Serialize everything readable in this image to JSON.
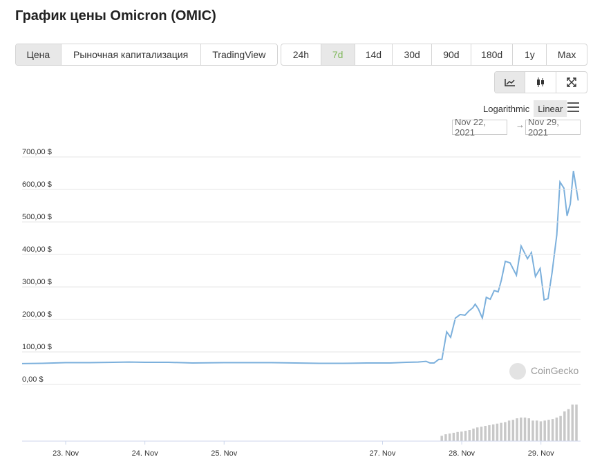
{
  "title": "График цены Omicron (OMIC)",
  "tabs": [
    "Цена",
    "Рыночная капитализация",
    "TradingView"
  ],
  "active_tab": 0,
  "ranges": [
    "24h",
    "7d",
    "14d",
    "30d",
    "90d",
    "180d",
    "1y",
    "Max"
  ],
  "active_range": 1,
  "scale_options": [
    "Logarithmic",
    "Linear"
  ],
  "active_scale": 1,
  "date_from": "Nov 22, 2021",
  "date_to": "Nov 29, 2021",
  "watermark": "CoinGecko",
  "chart_data": {
    "type": "line",
    "x": [
      22.45,
      22.7,
      23.0,
      23.3,
      23.6,
      23.8,
      24.0,
      24.3,
      24.6,
      25.0,
      25.3,
      25.6,
      25.9,
      26.2,
      26.5,
      26.8,
      27.1,
      27.3,
      27.45,
      27.55,
      27.6,
      27.65,
      27.71,
      27.75,
      27.81,
      27.86,
      27.92,
      27.98,
      28.04,
      28.09,
      28.14,
      28.17,
      28.21,
      28.26,
      28.31,
      28.36,
      28.41,
      28.46,
      28.5,
      28.55,
      28.61,
      28.69,
      28.75,
      28.83,
      28.88,
      28.93,
      28.99,
      29.04,
      29.09,
      29.14,
      29.2,
      29.24,
      29.29,
      29.33,
      29.37,
      29.41,
      29.47
    ],
    "series": [
      {
        "name": "Price",
        "color": "#7cb0dc",
        "values": [
          64,
          65,
          67,
          67,
          68,
          69,
          68,
          68,
          66,
          67,
          67,
          67,
          66,
          65,
          65,
          66,
          66,
          68,
          69,
          71,
          66,
          66,
          77,
          77,
          162,
          145,
          204,
          215,
          213,
          226,
          236,
          247,
          232,
          204,
          268,
          262,
          289,
          285,
          321,
          379,
          374,
          336,
          426,
          387,
          406,
          332,
          357,
          260,
          264,
          343,
          460,
          623,
          604,
          519,
          555,
          657,
          566
        ]
      }
    ],
    "xlim": [
      22.45,
      29.5
    ],
    "xticks": [
      {
        "value": 23,
        "label": "23. Nov"
      },
      {
        "value": 24,
        "label": "24. Nov"
      },
      {
        "value": 25,
        "label": "25. Nov"
      },
      {
        "value": 27,
        "label": "27. Nov"
      },
      {
        "value": 28,
        "label": "28. Nov"
      },
      {
        "value": 29,
        "label": "29. Nov"
      }
    ],
    "ylim": [
      0,
      700
    ],
    "yticks": [
      {
        "value": 0,
        "label": "0,00 $"
      },
      {
        "value": 100,
        "label": "100,00 $"
      },
      {
        "value": 200,
        "label": "200,00 $"
      },
      {
        "value": 300,
        "label": "300,00 $"
      },
      {
        "value": 400,
        "label": "400,00 $"
      },
      {
        "value": 500,
        "label": "500,00 $"
      },
      {
        "value": 600,
        "label": "600,00 $"
      },
      {
        "value": 700,
        "label": "700,00 $"
      }
    ],
    "grid": true,
    "volume": {
      "color": "#c8c8c8",
      "vlim": [
        0,
        100
      ],
      "x": [
        27.75,
        27.8,
        27.85,
        27.9,
        27.95,
        28.0,
        28.05,
        28.1,
        28.15,
        28.2,
        28.25,
        28.3,
        28.35,
        28.4,
        28.45,
        28.5,
        28.55,
        28.6,
        28.65,
        28.7,
        28.75,
        28.8,
        28.85,
        28.9,
        28.95,
        29.0,
        29.05,
        29.1,
        29.15,
        29.2,
        29.25,
        29.3,
        29.35,
        29.4,
        29.45
      ],
      "values": [
        14,
        18,
        20,
        22,
        24,
        25,
        27,
        29,
        33,
        36,
        38,
        40,
        42,
        44,
        46,
        48,
        50,
        54,
        56,
        60,
        62,
        62,
        60,
        54,
        54,
        52,
        54,
        56,
        58,
        62,
        66,
        78,
        84,
        96,
        96
      ]
    }
  }
}
